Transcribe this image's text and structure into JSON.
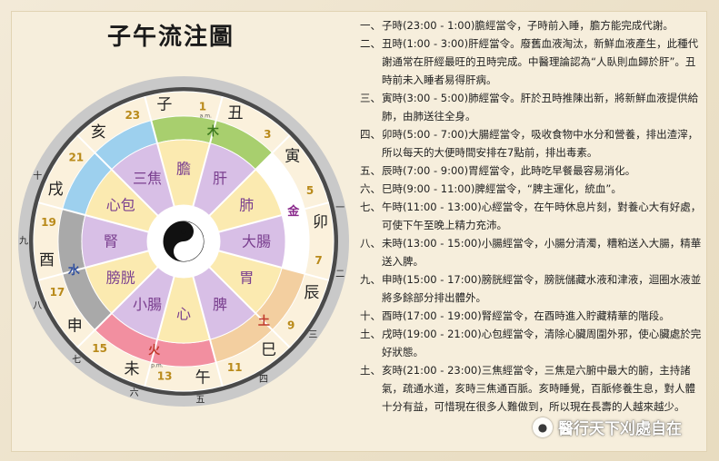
{
  "title": "子午流注圖",
  "wheel": {
    "branches": [
      "子",
      "丑",
      "寅",
      "卯",
      "辰",
      "巳",
      "午",
      "未",
      "申",
      "酉",
      "戌",
      "亥"
    ],
    "hours": [
      "23",
      "1",
      "3",
      "5",
      "7",
      "9",
      "11",
      "13",
      "15",
      "17",
      "19",
      "21"
    ],
    "am": "a.m.",
    "pm": "p.m.",
    "elements": [
      {
        "label": "木",
        "color": "#3d7a1e"
      },
      {
        "label": "金",
        "color": "#8a2a8c"
      },
      {
        "label": "土",
        "color": "#c0392b"
      },
      {
        "label": "火",
        "color": "#c0392b"
      },
      {
        "label": "水",
        "color": "#2f4fa0"
      }
    ],
    "organs": [
      "膽",
      "肝",
      "肺",
      "大腸",
      "胃",
      "脾",
      "心",
      "小腸",
      "膀胱",
      "腎",
      "心包",
      "三焦"
    ],
    "outer_numerals": [
      "一",
      "二",
      "三",
      "四",
      "五",
      "六",
      "七",
      "八",
      "九",
      "十"
    ],
    "colors": {
      "sector_fills": [
        "#a8cf6e",
        "#a8cf6e",
        "#ffffff",
        "#ffffff",
        "#f3cfa0",
        "#f3cfa0",
        "#f28fa0",
        "#f28fa0",
        "#a9a9a9",
        "#a9a9a9",
        "#9dd0ee",
        "#9dd0ee"
      ],
      "organ_yellow": "#fbeab0",
      "organ_purple": "#d8bfe6",
      "hour_text": "#b98a1a",
      "ring_dark": "#4a4a4a",
      "ring_light": "#c9c9c9"
    }
  },
  "notes": [
    {
      "num": "一、",
      "text": "子時(23:00 - 1:00)膽經當令，子時前入睡，膽方能完成代謝。"
    },
    {
      "num": "二、",
      "text": "丑時(1:00 - 3:00)肝經當令。廢舊血液淘汰，新鮮血液產生，此種代謝通常在肝經最旺的丑時完成。中醫理論認為“人臥則血歸於肝”。丑時前未入睡者易得肝病。"
    },
    {
      "num": "三、",
      "text": "寅時(3:00 - 5:00)肺經當令。肝於丑時推陳出新，將新鮮血液提供給肺，由肺送往全身。"
    },
    {
      "num": "四、",
      "text": "卯時(5:00 - 7:00)大腸經當令，吸收食物中水分和營養，排出渣滓，所以每天的大便時間安排在7點前，排出毒素。"
    },
    {
      "num": "五、",
      "text": "辰時(7:00 - 9:00)胃經當令，此時吃早餐最容易消化。"
    },
    {
      "num": "六、",
      "text": "巳時(9:00 - 11:00)脾經當令，“脾主運化，統血”。"
    },
    {
      "num": "七、",
      "text": "午時(11:00 - 13:00)心經當令，在午時休息片刻，對養心大有好處，可使下午至晚上精力充沛。"
    },
    {
      "num": "八、",
      "text": "未時(13:00 - 15:00)小腸經當令，小腸分清濁，糟粕送入大腸，精華送入脾。"
    },
    {
      "num": "九、",
      "text": "申時(15:00 - 17:00)膀胱經當令，膀胱儲藏水液和津液，迴圈水液並將多餘部分排出體外。"
    },
    {
      "num": "十、",
      "text": "酉時(17:00 - 19:00)腎經當令，在酉時進入貯藏精華的階段。"
    },
    {
      "num": "土、",
      "text": "戌時(19:00 - 21:00)心包經當令，清除心臟周圍外邪，使心臟處於完好狀態。"
    },
    {
      "num": "土、",
      "text": "亥時(21:00 - 23:00)三焦經當令，三焦是六腑中最大的腑，主持諸氣，疏通水道，亥時三焦通百脈。亥時睡覺，百脈修養生息，對人體十分有益，可惜現在很多人難做到，所以現在長壽的人越來越少。"
    }
  ],
  "watermark": "醫行天下刈處自在"
}
